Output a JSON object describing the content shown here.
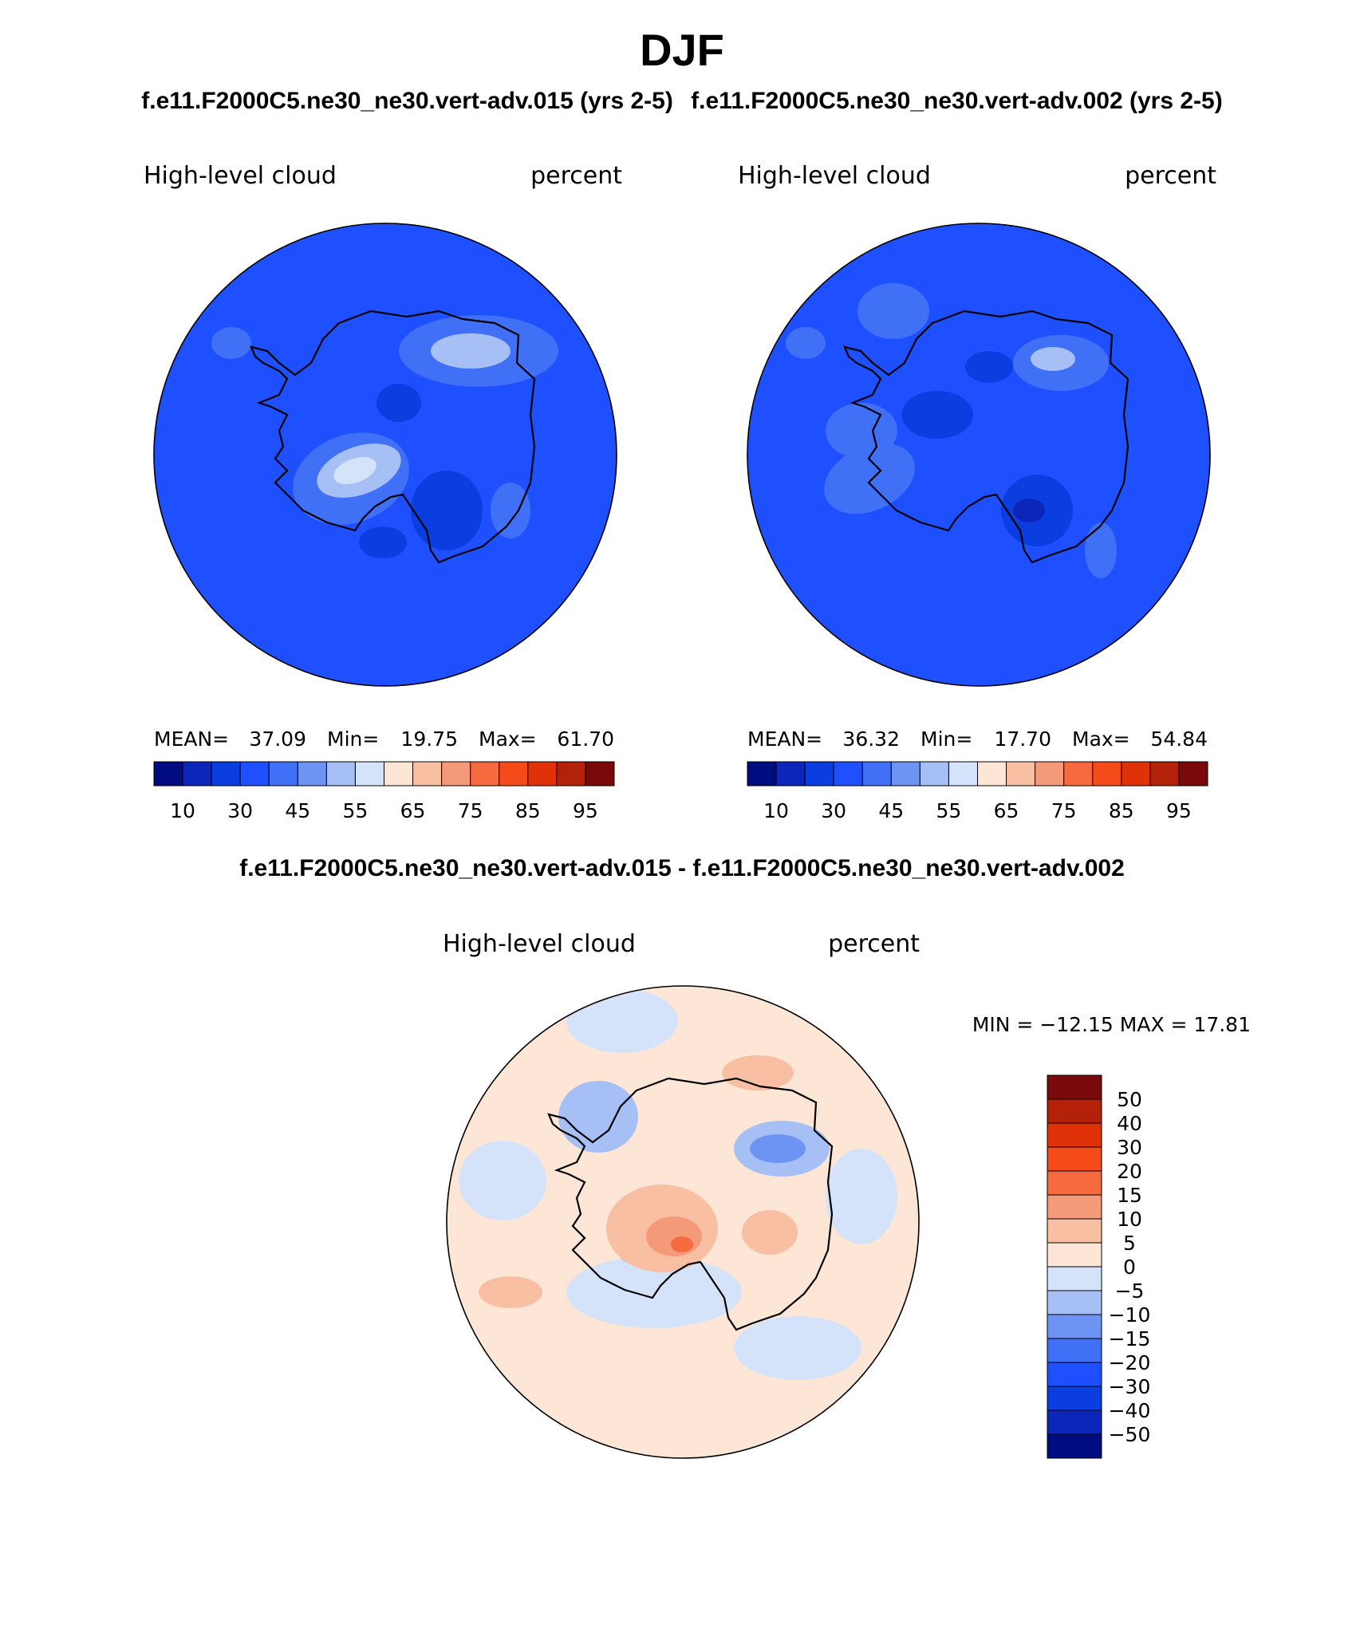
{
  "title": "DJF",
  "case_titles": [
    "f.e11.F2000C5.ne30_ne30.vert-adv.015 (yrs 2-5)",
    "f.e11.F2000C5.ne30_ne30.vert-adv.002 (yrs 2-5)"
  ],
  "diff_title": "f.e11.F2000C5.ne30_ne30.vert-adv.015 - f.e11.F2000C5.ne30_ne30.vert-adv.002",
  "colors": {
    "abs_fill": "#1f50ff",
    "diff_fill": "#fde6d6",
    "coast": "#000000"
  },
  "chart_data": [
    {
      "type": "heatmap",
      "projection": "south-polar-stereographic",
      "variable": "High-level cloud",
      "units": "percent",
      "stats": {
        "mean_label": "MEAN=",
        "mean": "37.09",
        "min_label": "Min=",
        "min": "19.75",
        "max_label": "Max=",
        "max": "61.70"
      },
      "colorbar": {
        "orientation": "horizontal",
        "tick_labels": [
          "10",
          "30",
          "45",
          "55",
          "65",
          "75",
          "85",
          "95"
        ],
        "colors": [
          "#000c80",
          "#0b26b8",
          "#0b3ee0",
          "#1f50ff",
          "#4070f5",
          "#6d94f2",
          "#a6bff5",
          "#d4e3fa",
          "#fde6d6",
          "#f9bfa3",
          "#f59a78",
          "#f76a40",
          "#f54a1a",
          "#e03208",
          "#b32208",
          "#7a0a0a"
        ]
      }
    },
    {
      "type": "heatmap",
      "projection": "south-polar-stereographic",
      "variable": "High-level cloud",
      "units": "percent",
      "stats": {
        "mean_label": "MEAN=",
        "mean": "36.32",
        "min_label": "Min=",
        "min": "17.70",
        "max_label": "Max=",
        "max": "54.84"
      },
      "colorbar": {
        "orientation": "horizontal",
        "tick_labels": [
          "10",
          "30",
          "45",
          "55",
          "65",
          "75",
          "85",
          "95"
        ],
        "colors": [
          "#000c80",
          "#0b26b8",
          "#0b3ee0",
          "#1f50ff",
          "#4070f5",
          "#6d94f2",
          "#a6bff5",
          "#d4e3fa",
          "#fde6d6",
          "#f9bfa3",
          "#f59a78",
          "#f76a40",
          "#f54a1a",
          "#e03208",
          "#b32208",
          "#7a0a0a"
        ]
      }
    },
    {
      "type": "heatmap",
      "projection": "south-polar-stereographic",
      "variable": "High-level cloud",
      "units": "percent",
      "stats": {
        "label": "MIN = −12.15 MAX =  17.81",
        "min": -12.15,
        "max": 17.81
      },
      "colorbar": {
        "orientation": "vertical",
        "tick_labels": [
          "50",
          "40",
          "30",
          "20",
          "15",
          "10",
          "5",
          "0",
          "−5",
          "−10",
          "−15",
          "−20",
          "−30",
          "−40",
          "−50"
        ],
        "colors": [
          "#7a0a0a",
          "#b32208",
          "#e03208",
          "#f54a1a",
          "#f76a40",
          "#f59a78",
          "#f9bfa3",
          "#fde6d6",
          "#d4e3fa",
          "#a6bff5",
          "#6d94f2",
          "#4070f5",
          "#1f50ff",
          "#0b3ee0",
          "#0b26b8",
          "#000c80"
        ]
      }
    }
  ]
}
